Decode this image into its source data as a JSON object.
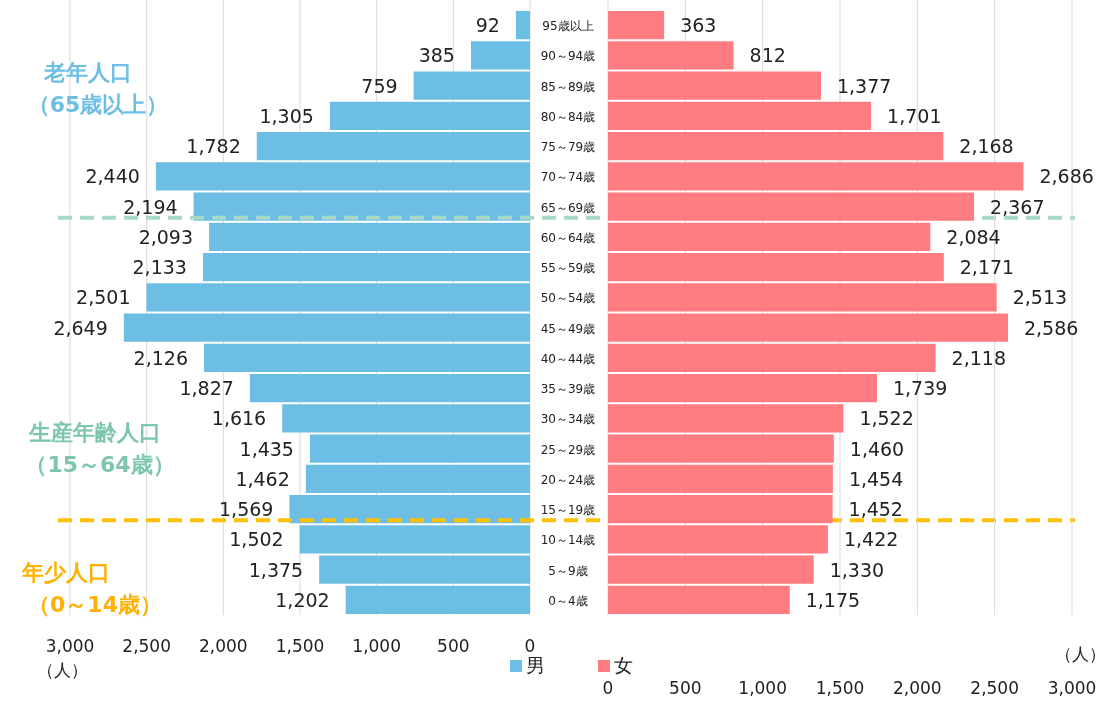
{
  "chart_data": [
    {
      "type": "bar",
      "orientation": "horizontal",
      "categories": [
        "95歳以上",
        "90～94歳",
        "85～89歳",
        "80～84歳",
        "75～79歳",
        "70～74歳",
        "65～69歳",
        "60～64歳",
        "55～59歳",
        "50～54歳",
        "45～49歳",
        "40～44歳",
        "35～39歳",
        "30～34歳",
        "25～29歳",
        "20～24歳",
        "15～19歳",
        "10～14歳",
        "5～9歳",
        "0～4歳"
      ],
      "series": [
        {
          "name": "男",
          "color": "#6dbee4",
          "values": [
            92,
            385,
            759,
            1305,
            1782,
            2440,
            2194,
            2093,
            2133,
            2501,
            2649,
            2126,
            1827,
            1616,
            1435,
            1462,
            1569,
            1502,
            1375,
            1202
          ],
          "value_labels": [
            "92",
            "385",
            "759",
            "1,305",
            "1,782",
            "2,440",
            "2,194",
            "2,093",
            "2,133",
            "2,501",
            "2,649",
            "2,126",
            "1,827",
            "1,616",
            "1,435",
            "1,462",
            "1,569",
            "1,502",
            "1,375",
            "1,202"
          ]
        }
      ],
      "xlim": [
        3000,
        0
      ],
      "xticks": [
        {
          "value": 3000,
          "label": "3,000"
        },
        {
          "value": 2500,
          "label": "2,500"
        },
        {
          "value": 2000,
          "label": "2,000"
        },
        {
          "value": 1500,
          "label": "1,500"
        },
        {
          "value": 1000,
          "label": "1,000"
        },
        {
          "value": 500,
          "label": "500"
        },
        {
          "value": 0,
          "label": "0"
        }
      ],
      "xlabel": "（人）",
      "grid": "x",
      "legend": "bottom",
      "ref_lines": [
        {
          "axis": "y",
          "value": "65～69歳",
          "color": "#a6d9c6",
          "line_style": "dashed"
        },
        {
          "axis": "y",
          "value": "15～19歳",
          "color": "#ffc000",
          "line_style": "dashed"
        }
      ],
      "annotations": [
        "老年人口",
        "（65歳以上）",
        "生産年齢人口",
        "（15～64歳）",
        "年少人口",
        "（0～14歳）"
      ]
    },
    {
      "type": "bar",
      "orientation": "horizontal",
      "series": [
        {
          "name": "女",
          "color": "#ff7c80",
          "values": [
            363,
            812,
            1377,
            1701,
            2168,
            2686,
            2367,
            2084,
            2171,
            2513,
            2586,
            2118,
            1739,
            1522,
            1460,
            1454,
            1452,
            1422,
            1330,
            1175
          ],
          "value_labels": [
            "363",
            "812",
            "1,377",
            "1,701",
            "2,168",
            "2,686",
            "2,367",
            "2,084",
            "2,171",
            "2,513",
            "2,586",
            "2,118",
            "1,739",
            "1,522",
            "1,460",
            "1,454",
            "1,452",
            "1,422",
            "1,330",
            "1,175"
          ]
        }
      ],
      "xlim": [
        0,
        3000
      ],
      "xticks": [
        {
          "value": 0,
          "label": "0"
        },
        {
          "value": 500,
          "label": "500"
        },
        {
          "value": 1000,
          "label": "1,000"
        },
        {
          "value": 1500,
          "label": "1,500"
        },
        {
          "value": 2000,
          "label": "2,000"
        },
        {
          "value": 2500,
          "label": "2,500"
        },
        {
          "value": 3000,
          "label": "3,000"
        }
      ],
      "xlabel": "（人）",
      "grid": "x",
      "legend": "bottom"
    }
  ]
}
